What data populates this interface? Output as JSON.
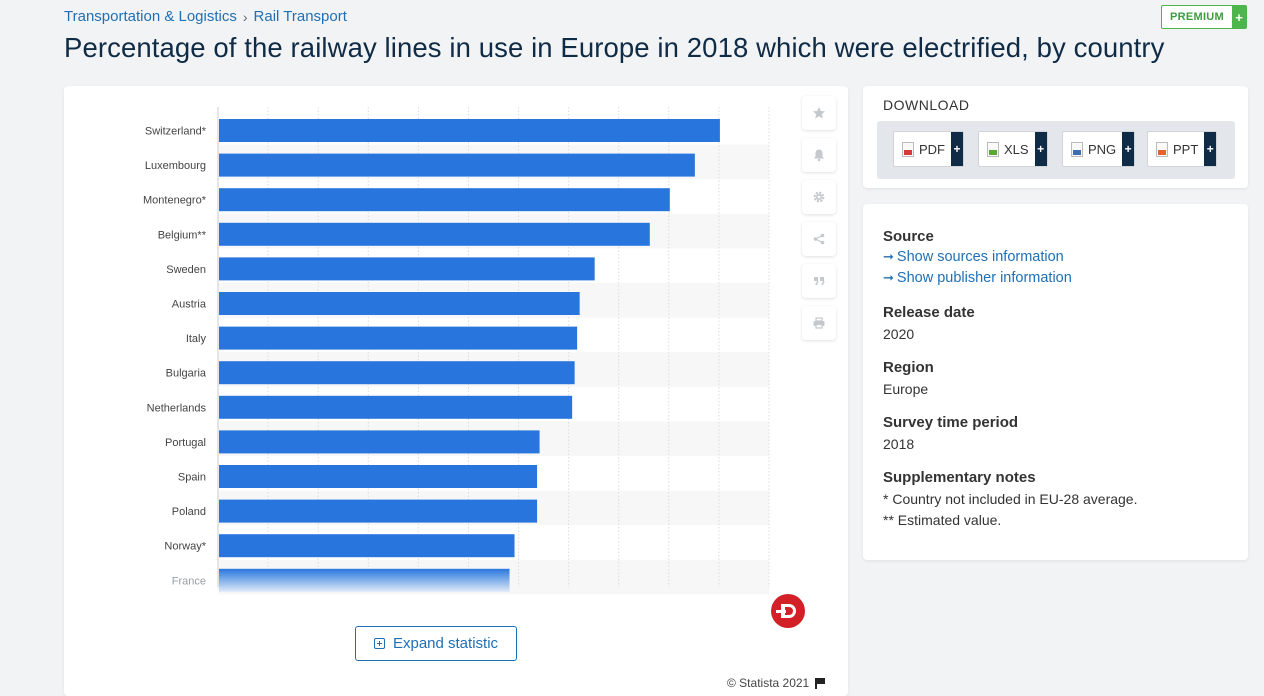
{
  "breadcrumb": {
    "items": [
      "Transportation & Logistics",
      "Rail Transport"
    ],
    "separator": "›"
  },
  "premium": {
    "label": "PREMIUM",
    "plus": "+"
  },
  "page_title": "Percentage of the railway lines in use in Europe in 2018 which were electrified, by country",
  "chart_data": {
    "type": "bar",
    "orientation": "horizontal",
    "title": "Percentage of the railway lines in use in Europe in 2018 which were electrified, by country",
    "xlabel": "",
    "ylabel": "",
    "xlim": [
      0,
      110
    ],
    "grid": true,
    "bar_color": "#2876dd",
    "categories": [
      "Switzerland*",
      "Luxembourg",
      "Montenegro*",
      "Belgium**",
      "Sweden",
      "Austria",
      "Italy",
      "Bulgaria",
      "Netherlands",
      "Portugal",
      "Spain",
      "Poland",
      "Norway*",
      "France"
    ],
    "values": [
      100,
      95,
      90,
      86,
      75,
      72,
      71.5,
      71,
      70.5,
      64,
      63.5,
      63.5,
      59,
      58
    ]
  },
  "toolbar": {
    "icons": [
      "star-icon",
      "bell-icon",
      "gear-icon",
      "share-icon",
      "quote-icon",
      "print-icon"
    ]
  },
  "expand_label": "Expand statistic",
  "copyright": "© Statista 2021",
  "download": {
    "title": "DOWNLOAD",
    "buttons": [
      {
        "label": "PDF",
        "plus": "+",
        "color": "#d63b3b"
      },
      {
        "label": "XLS",
        "plus": "+",
        "color": "#5aa832"
      },
      {
        "label": "PNG",
        "plus": "+",
        "color": "#3d6eb5"
      },
      {
        "label": "PPT",
        "plus": "+",
        "color": "#e0642e"
      }
    ]
  },
  "info": {
    "source_label": "Source",
    "source_link": "Show sources information",
    "publisher_link": "Show publisher information",
    "release_label": "Release date",
    "release_value": "2020",
    "region_label": "Region",
    "region_value": "Europe",
    "period_label": "Survey time period",
    "period_value": "2018",
    "notes_label": "Supplementary notes",
    "note_1": "* Country not included in EU-28 average.",
    "note_2": "** Estimated value."
  }
}
